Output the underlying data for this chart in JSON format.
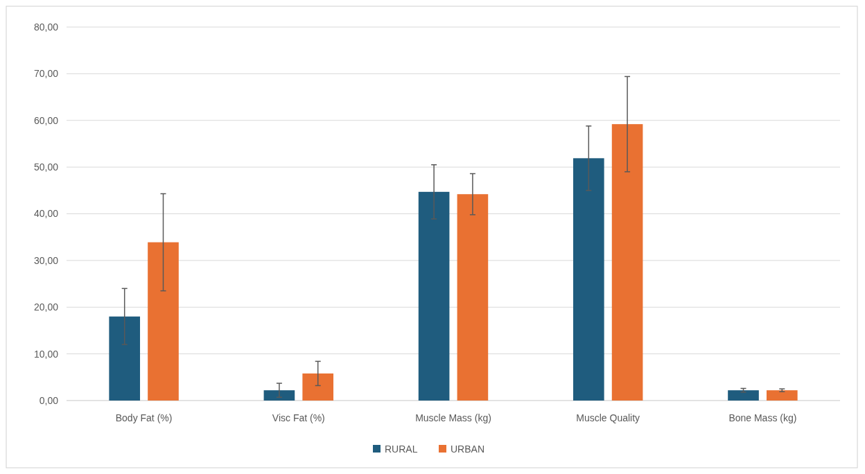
{
  "chart_data": {
    "type": "bar",
    "categories": [
      "Body Fat (%)",
      "Visc Fat (%)",
      "Muscle Mass (kg)",
      "Muscle Quality",
      "Bone Mass (kg)"
    ],
    "series": [
      {
        "name": "RURAL",
        "color": "#1f5c7e",
        "values": [
          18.0,
          2.2,
          44.7,
          51.9,
          2.2
        ],
        "errors": [
          6.0,
          1.5,
          5.8,
          6.9,
          0.4
        ]
      },
      {
        "name": "URBAN",
        "color": "#e97132",
        "values": [
          33.9,
          5.8,
          44.2,
          59.2,
          2.2
        ],
        "errors": [
          10.4,
          2.6,
          4.4,
          10.2,
          0.3
        ]
      }
    ],
    "ylim": [
      0,
      80
    ],
    "yticks": [
      {
        "value": 0,
        "label": "0,00"
      },
      {
        "value": 10,
        "label": "10,00"
      },
      {
        "value": 20,
        "label": "20,00"
      },
      {
        "value": 30,
        "label": "30,00"
      },
      {
        "value": 40,
        "label": "40,00"
      },
      {
        "value": 50,
        "label": "50,00"
      },
      {
        "value": 60,
        "label": "60,00"
      },
      {
        "value": 70,
        "label": "70,00"
      },
      {
        "value": 80,
        "label": "80,00"
      }
    ],
    "grid": "y",
    "legend": "bottom"
  }
}
